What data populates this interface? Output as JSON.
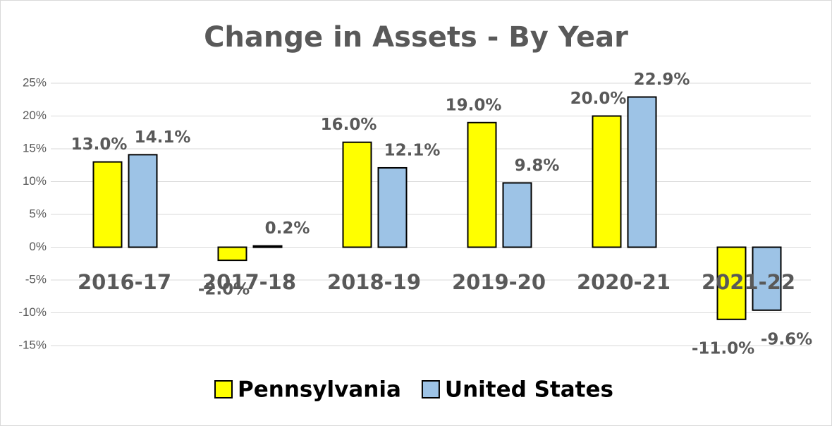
{
  "chart_data": {
    "type": "bar",
    "title": "Change in Assets - By Year",
    "categories": [
      "2016-17",
      "2017-18",
      "2018-19",
      "2019-20",
      "2020-21",
      "2021-22"
    ],
    "series": [
      {
        "name": "Pennsylvania",
        "color": "#ffff00",
        "values": [
          13,
          -2,
          16,
          19,
          20,
          -11
        ],
        "value_labels": [
          "13.0%",
          "-2.0%",
          "16.0%",
          "19.0%",
          "20.0%",
          "-11.0%"
        ]
      },
      {
        "name": "United States",
        "color": "#9dc3e6",
        "values": [
          14.1,
          0.2,
          12.1,
          9.8,
          22.9,
          -9.6
        ],
        "value_labels": [
          "14.1%",
          "0.2%",
          "12.1%",
          "9.8%",
          "22.9%",
          "-9.6%"
        ]
      }
    ],
    "ylim": [
      -15,
      25
    ],
    "yticks": [
      {
        "value": -15,
        "label": "-15%"
      },
      {
        "value": -10,
        "label": "-10%"
      },
      {
        "value": -5,
        "label": "-5%"
      },
      {
        "value": 0,
        "label": "0%"
      },
      {
        "value": 5,
        "label": "5%"
      },
      {
        "value": 10,
        "label": "10%"
      },
      {
        "value": 15,
        "label": "15%"
      },
      {
        "value": 20,
        "label": "20%"
      },
      {
        "value": 25,
        "label": "25%"
      }
    ],
    "grid": true,
    "legend": "bottom"
  }
}
